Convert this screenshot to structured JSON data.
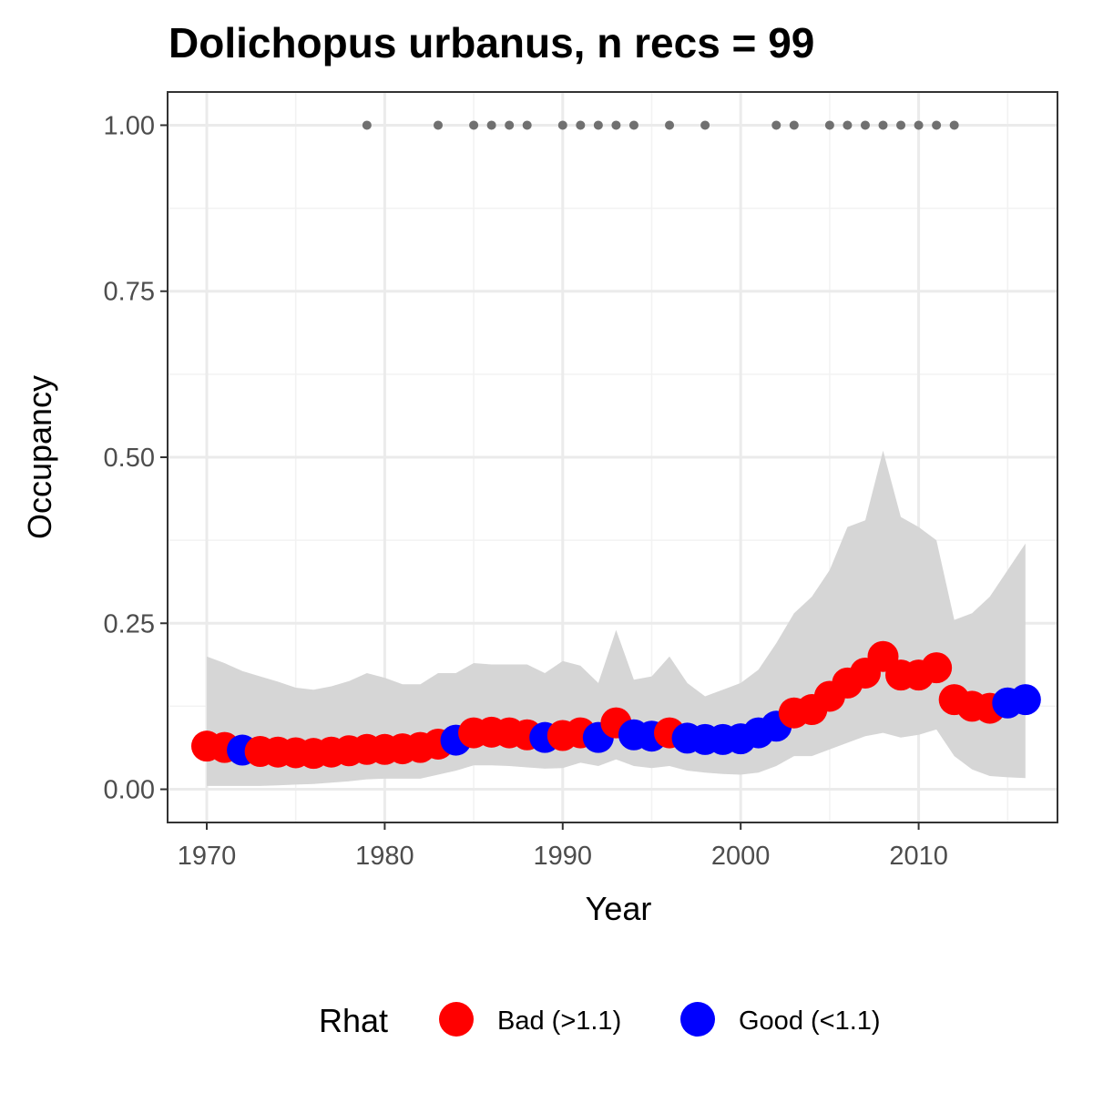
{
  "chart_data": {
    "type": "line",
    "title": "Dolichopus urbanus, n recs = 99",
    "xlabel": "Year",
    "ylabel": "Occupancy",
    "xlim": [
      1967.8,
      2017.8
    ],
    "ylim": [
      -0.05,
      1.05
    ],
    "x_ticks": [
      1970,
      1980,
      1990,
      2000,
      2010
    ],
    "x_tick_labels": [
      "1970",
      "1980",
      "1990",
      "2000",
      "2010"
    ],
    "y_ticks": [
      0,
      0.25,
      0.5,
      0.75,
      1
    ],
    "y_tick_labels": [
      "0.00",
      "0.25",
      "0.50",
      "0.75",
      "1.00"
    ],
    "grid": true,
    "legend": {
      "position": "bottom",
      "title": "Rhat",
      "entries": [
        {
          "label": "Bad (>1.1)",
          "color": "#ff0000"
        },
        {
          "label": "Good (<1.1)",
          "color": "#0000ff"
        }
      ]
    },
    "colors": {
      "bad": "#ff0000",
      "good": "#0000ff",
      "ribbon": "#d6d6d6",
      "records": "#707070"
    },
    "series": [
      {
        "x": [
          1970,
          1971,
          1972,
          1973,
          1974,
          1975,
          1976,
          1977,
          1978,
          1979,
          1980,
          1981,
          1982,
          1983,
          1984,
          1985,
          1986,
          1987,
          1988,
          1989,
          1990,
          1991,
          1992,
          1993,
          1994,
          1995,
          1996,
          1997,
          1998,
          1999,
          2000,
          2001,
          2002,
          2003,
          2004,
          2005,
          2006,
          2007,
          2008,
          2009,
          2010,
          2011,
          2012,
          2013,
          2014,
          2015,
          2016
        ],
        "y": [
          0.065,
          0.063,
          0.059,
          0.057,
          0.056,
          0.055,
          0.054,
          0.056,
          0.058,
          0.06,
          0.06,
          0.061,
          0.063,
          0.068,
          0.074,
          0.085,
          0.086,
          0.085,
          0.082,
          0.078,
          0.081,
          0.085,
          0.078,
          0.1,
          0.082,
          0.08,
          0.085,
          0.077,
          0.075,
          0.075,
          0.076,
          0.085,
          0.095,
          0.115,
          0.12,
          0.14,
          0.16,
          0.175,
          0.2,
          0.172,
          0.172,
          0.183,
          0.135,
          0.125,
          0.122,
          0.13,
          0.135
        ],
        "rhat": [
          "bad",
          "bad",
          "good",
          "bad",
          "bad",
          "bad",
          "bad",
          "bad",
          "bad",
          "bad",
          "bad",
          "bad",
          "bad",
          "bad",
          "good",
          "bad",
          "bad",
          "bad",
          "bad",
          "good",
          "bad",
          "bad",
          "good",
          "bad",
          "good",
          "good",
          "bad",
          "good",
          "good",
          "good",
          "good",
          "good",
          "good",
          "bad",
          "bad",
          "bad",
          "bad",
          "bad",
          "bad",
          "bad",
          "bad",
          "bad",
          "bad",
          "bad",
          "bad",
          "good",
          "good"
        ],
        "lower": [
          0.005,
          0.005,
          0.005,
          0.005,
          0.006,
          0.007,
          0.008,
          0.01,
          0.012,
          0.015,
          0.016,
          0.016,
          0.016,
          0.022,
          0.028,
          0.036,
          0.036,
          0.035,
          0.033,
          0.031,
          0.032,
          0.04,
          0.035,
          0.045,
          0.035,
          0.032,
          0.035,
          0.028,
          0.025,
          0.023,
          0.022,
          0.025,
          0.035,
          0.05,
          0.05,
          0.06,
          0.07,
          0.08,
          0.085,
          0.078,
          0.082,
          0.09,
          0.05,
          0.03,
          0.02,
          0.018,
          0.017
        ],
        "upper": [
          0.2,
          0.19,
          0.178,
          0.17,
          0.162,
          0.153,
          0.15,
          0.155,
          0.163,
          0.175,
          0.168,
          0.158,
          0.158,
          0.175,
          0.175,
          0.19,
          0.188,
          0.188,
          0.188,
          0.175,
          0.193,
          0.186,
          0.16,
          0.24,
          0.165,
          0.17,
          0.2,
          0.16,
          0.14,
          0.15,
          0.16,
          0.18,
          0.22,
          0.265,
          0.29,
          0.33,
          0.395,
          0.405,
          0.51,
          0.41,
          0.395,
          0.375,
          0.255,
          0.265,
          0.29,
          0.33,
          0.37
        ]
      }
    ],
    "records": {
      "x": [
        1979,
        1983,
        1985,
        1986,
        1987,
        1988,
        1990,
        1991,
        1992,
        1993,
        1994,
        1996,
        1998,
        2002,
        2003,
        2005,
        2006,
        2007,
        2008,
        2009,
        2010,
        2011,
        2012
      ],
      "y": 1.0
    }
  }
}
